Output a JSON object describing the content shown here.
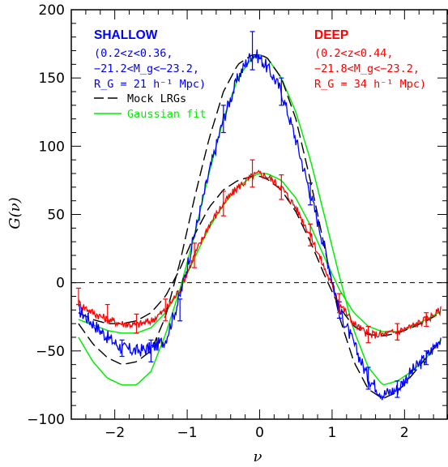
{
  "chart_data": {
    "type": "line",
    "xlabel": "ν",
    "ylabel": "G(ν)",
    "xlim": [
      -2.6,
      2.6
    ],
    "ylim": [
      -100,
      200
    ],
    "x_ticks": [
      -2,
      -1,
      0,
      1,
      2
    ],
    "y_ticks": [
      -100,
      -50,
      0,
      50,
      100,
      150,
      200
    ],
    "reference_line": {
      "y": 0,
      "style": "dashed",
      "color": "#000000"
    },
    "annotations": {
      "shallow": {
        "title": "SHALLOW",
        "lines": [
          "(0.2<z<0.36,",
          "−21.2<M_g<−23.2,",
          "R_G = 21 h⁻¹ Mpc)"
        ],
        "color": "#0000ff"
      },
      "deep": {
        "title": "DEEP",
        "lines": [
          "(0.2<z<0.44,",
          "−21.8<M_g<−23.2,",
          "R_G = 34 h⁻¹ Mpc)"
        ],
        "color": "#ff0000"
      }
    },
    "legend": {
      "placement": "top-left",
      "entries": [
        {
          "label": "Mock LRGs",
          "color": "#000000",
          "style": "dashed"
        },
        {
          "label": "Gaussian fit",
          "color": "#00ee00",
          "style": "solid"
        }
      ]
    },
    "series": [
      {
        "name": "SHALLOW",
        "color": "#0000ff",
        "style": "noisy",
        "x": [
          -2.5,
          -2.3,
          -2.1,
          -1.9,
          -1.7,
          -1.5,
          -1.3,
          -1.1,
          -0.9,
          -0.7,
          -0.5,
          -0.3,
          -0.2,
          -0.1,
          0.0,
          0.1,
          0.2,
          0.3,
          0.5,
          0.7,
          0.9,
          1.1,
          1.3,
          1.5,
          1.7,
          1.9,
          2.1,
          2.3,
          2.5
        ],
        "y": [
          -20,
          -30,
          -40,
          -48,
          -50,
          -48,
          -42,
          -10,
          35,
          80,
          120,
          150,
          160,
          168,
          165,
          158,
          150,
          140,
          105,
          65,
          25,
          -20,
          -45,
          -70,
          -82,
          -78,
          -65,
          -55,
          -40
        ]
      },
      {
        "name": "DEEP",
        "color": "#ff0000",
        "style": "noisy",
        "x": [
          -2.5,
          -2.3,
          -2.1,
          -1.9,
          -1.7,
          -1.5,
          -1.3,
          -1.1,
          -0.9,
          -0.7,
          -0.5,
          -0.3,
          -0.1,
          0.0,
          0.1,
          0.3,
          0.5,
          0.7,
          0.9,
          1.1,
          1.3,
          1.5,
          1.7,
          1.9,
          2.1,
          2.3,
          2.5
        ],
        "y": [
          -15,
          -22,
          -27,
          -30,
          -31,
          -28,
          -20,
          -5,
          20,
          42,
          58,
          70,
          78,
          80,
          78,
          70,
          55,
          35,
          10,
          -15,
          -30,
          -38,
          -38,
          -36,
          -32,
          -27,
          -20
        ]
      },
      {
        "name": "Mock LRGs (shallow)",
        "color": "#000000",
        "style": "dashed",
        "x": [
          -2.5,
          -2.3,
          -2.1,
          -1.9,
          -1.7,
          -1.5,
          -1.3,
          -1.1,
          -0.9,
          -0.7,
          -0.5,
          -0.3,
          -0.1,
          0.0,
          0.1,
          0.3,
          0.5,
          0.7,
          0.9,
          1.1,
          1.3,
          1.5,
          1.7,
          1.9,
          2.1,
          2.3,
          2.5
        ],
        "y": [
          -30,
          -45,
          -55,
          -60,
          -58,
          -50,
          -25,
          15,
          62,
          105,
          140,
          160,
          167,
          167,
          165,
          150,
          120,
          75,
          25,
          -25,
          -58,
          -78,
          -85,
          -80,
          -68,
          -55,
          -42
        ]
      },
      {
        "name": "Mock LRGs (deep)",
        "color": "#000000",
        "style": "dashed",
        "x": [
          -2.5,
          -2.3,
          -2.1,
          -1.9,
          -1.7,
          -1.5,
          -1.3,
          -1.1,
          -0.9,
          -0.7,
          -0.5,
          -0.3,
          -0.1,
          0.0,
          0.1,
          0.3,
          0.5,
          0.7,
          0.9,
          1.1,
          1.3,
          1.5,
          1.7,
          1.9,
          2.1,
          2.3,
          2.5
        ],
        "y": [
          -22,
          -27,
          -30,
          -30,
          -28,
          -22,
          -10,
          10,
          35,
          55,
          68,
          75,
          78,
          78,
          76,
          68,
          52,
          30,
          5,
          -18,
          -32,
          -38,
          -39,
          -37,
          -33,
          -28,
          -22
        ]
      },
      {
        "name": "Gaussian fit (shallow)",
        "color": "#00ee00",
        "style": "solid",
        "x": [
          -2.5,
          -2.3,
          -2.1,
          -1.9,
          -1.7,
          -1.5,
          -1.3,
          -1.1,
          -0.9,
          -0.7,
          -0.5,
          -0.3,
          -0.1,
          0.0,
          0.1,
          0.3,
          0.5,
          0.7,
          0.9,
          1.1,
          1.3,
          1.5,
          1.7,
          1.9,
          2.1,
          2.3,
          2.5
        ],
        "y": [
          -40,
          -58,
          -70,
          -75,
          -75,
          -65,
          -38,
          -5,
          35,
          80,
          120,
          150,
          165,
          167,
          165,
          150,
          125,
          90,
          48,
          5,
          -35,
          -62,
          -75,
          -72,
          -65,
          -55,
          -42
        ]
      },
      {
        "name": "Gaussian fit (deep)",
        "color": "#00ee00",
        "style": "solid",
        "x": [
          -2.5,
          -2.3,
          -2.1,
          -1.9,
          -1.7,
          -1.5,
          -1.3,
          -1.1,
          -0.9,
          -0.7,
          -0.5,
          -0.3,
          -0.1,
          0.0,
          0.1,
          0.3,
          0.5,
          0.7,
          0.9,
          1.1,
          1.3,
          1.5,
          1.7,
          1.9,
          2.1,
          2.3,
          2.5
        ],
        "y": [
          -27,
          -31,
          -35,
          -37,
          -37,
          -33,
          -22,
          -5,
          18,
          40,
          57,
          70,
          78,
          80,
          80,
          75,
          62,
          42,
          18,
          -5,
          -22,
          -32,
          -36,
          -36,
          -32,
          -27,
          -21
        ]
      }
    ],
    "error_bars": [
      {
        "series": "SHALLOW",
        "x": [
          -1.9,
          -1.5,
          -1.1,
          -0.5,
          -0.1,
          0.3,
          0.7,
          1.1,
          1.5,
          1.9,
          2.3
        ],
        "y": [
          -48,
          -50,
          -20,
          120,
          170,
          140,
          65,
          -20,
          -70,
          -78,
          -55
        ],
        "err": [
          6,
          8,
          8,
          10,
          14,
          10,
          8,
          6,
          8,
          6,
          5
        ]
      },
      {
        "series": "DEEP",
        "x": [
          -2.5,
          -2.1,
          -1.7,
          -1.3,
          -0.9,
          -0.5,
          -0.1,
          0.3,
          0.7,
          1.1,
          1.5,
          1.9,
          2.3
        ],
        "y": [
          -10,
          -22,
          -30,
          -20,
          20,
          58,
          80,
          70,
          35,
          -15,
          -38,
          -36,
          -27
        ],
        "err": [
          6,
          6,
          7,
          8,
          9,
          9,
          10,
          9,
          8,
          7,
          6,
          6,
          5
        ]
      }
    ]
  }
}
